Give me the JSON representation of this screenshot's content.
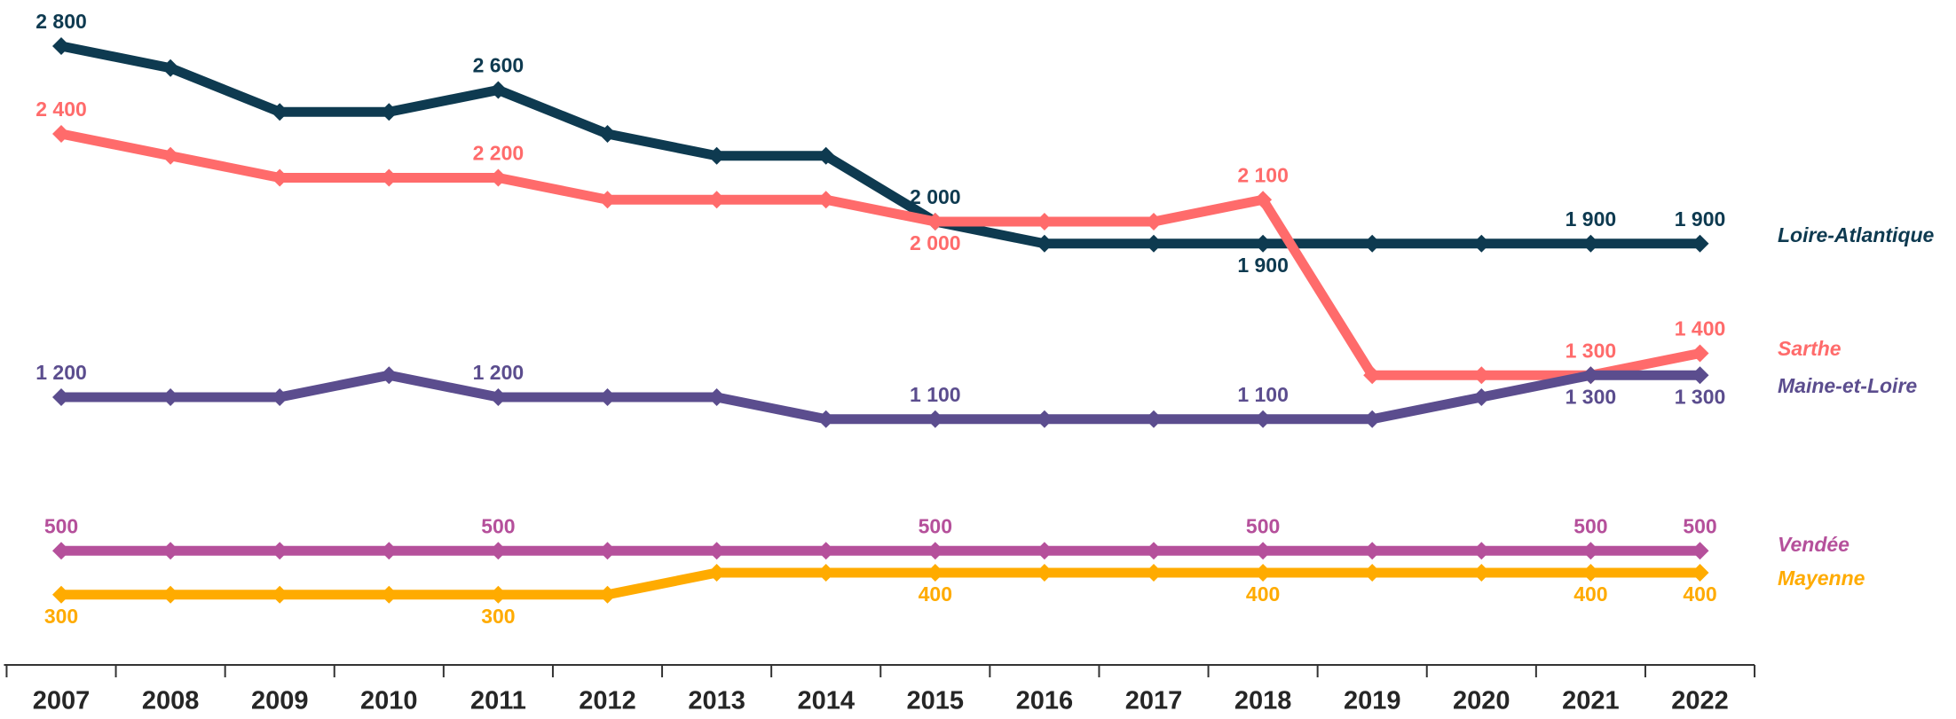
{
  "chart_data": {
    "type": "line",
    "categories": [
      "2007",
      "2008",
      "2009",
      "2010",
      "2011",
      "2012",
      "2013",
      "2014",
      "2015",
      "2016",
      "2017",
      "2018",
      "2019",
      "2020",
      "2021",
      "2022"
    ],
    "ylim": [
      0,
      2800
    ],
    "series": [
      {
        "name": "Loire-Atlantique",
        "color": "#0e3a50",
        "values": [
          2800,
          2700,
          2500,
          2500,
          2600,
          2400,
          2300,
          2300,
          2000,
          1900,
          1900,
          1900,
          1900,
          1900,
          1900,
          1900
        ],
        "value_labels": [
          "2 800",
          null,
          null,
          null,
          "2 600",
          null,
          null,
          null,
          "2 000",
          null,
          null,
          "1 900",
          null,
          null,
          "1 900",
          "1 900"
        ]
      },
      {
        "name": "Sarthe",
        "color": "#ff6b6b",
        "values": [
          2400,
          2300,
          2200,
          2200,
          2200,
          2100,
          2100,
          2100,
          2000,
          2000,
          2000,
          2100,
          1300,
          1300,
          1300,
          1400
        ],
        "value_labels": [
          "2 400",
          null,
          null,
          null,
          "2 200",
          null,
          null,
          null,
          "2 000",
          null,
          null,
          "2 100",
          null,
          null,
          "1 300",
          "1 400"
        ]
      },
      {
        "name": "Maine-et-Loire",
        "color": "#5b4d8e",
        "values": [
          1200,
          1200,
          1200,
          1300,
          1200,
          1200,
          1200,
          1100,
          1100,
          1100,
          1100,
          1100,
          1100,
          1200,
          1300,
          1300
        ],
        "value_labels": [
          "1 200",
          null,
          null,
          null,
          "1 200",
          null,
          null,
          null,
          "1 100",
          null,
          null,
          "1 100",
          null,
          null,
          "1 300",
          "1 300"
        ]
      },
      {
        "name": "Vendée",
        "color": "#b5509b",
        "values": [
          500,
          500,
          500,
          500,
          500,
          500,
          500,
          500,
          500,
          500,
          500,
          500,
          500,
          500,
          500,
          500
        ]
      },
      {
        "name": "Mayenne",
        "color": "#ffab00",
        "values": [
          300,
          300,
          300,
          300,
          300,
          300,
          400,
          400,
          400,
          400,
          400,
          400,
          400,
          400,
          400,
          400
        ]
      }
    ]
  }
}
